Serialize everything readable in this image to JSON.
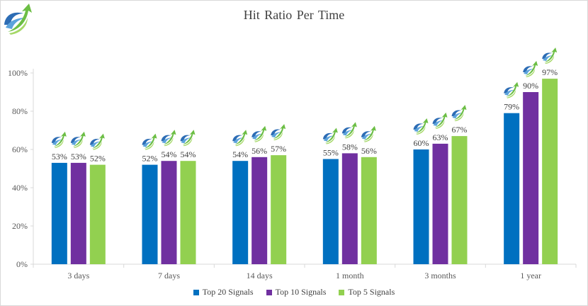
{
  "chart_data": {
    "type": "bar",
    "title": "Hit Ratio Per Time",
    "categories": [
      "3 days",
      "7 days",
      "14 days",
      "1 month",
      "3 months",
      "1 year"
    ],
    "series": [
      {
        "name": "Top 20 Signals",
        "color": "#0070c0",
        "values": [
          53,
          52,
          54,
          55,
          60,
          79
        ],
        "labels": [
          "53%",
          "52%",
          "54%",
          "55%",
          "60%",
          "79%"
        ]
      },
      {
        "name": "Top 10 Signals",
        "color": "#7030a0",
        "values": [
          53,
          54,
          56,
          58,
          63,
          90
        ],
        "labels": [
          "53%",
          "54%",
          "56%",
          "58%",
          "63%",
          "90%"
        ]
      },
      {
        "name": "Top 5 Signals",
        "color": "#92d050",
        "values": [
          52,
          54,
          57,
          56,
          67,
          97
        ],
        "labels": [
          "52%",
          "54%",
          "57%",
          "56%",
          "67%",
          "97%"
        ]
      }
    ],
    "yticks": [
      "0%",
      "20%",
      "40%",
      "60%",
      "80%",
      "100%"
    ],
    "ylim": [
      0,
      100
    ],
    "xlabel": "",
    "ylabel": "",
    "grid": false,
    "legend_position": "bottom",
    "axis_color": "#d9d9d9",
    "marker_icon": "green-arrow-swoosh-icon"
  },
  "logo_icon": "green-arrow-swoosh-logo"
}
